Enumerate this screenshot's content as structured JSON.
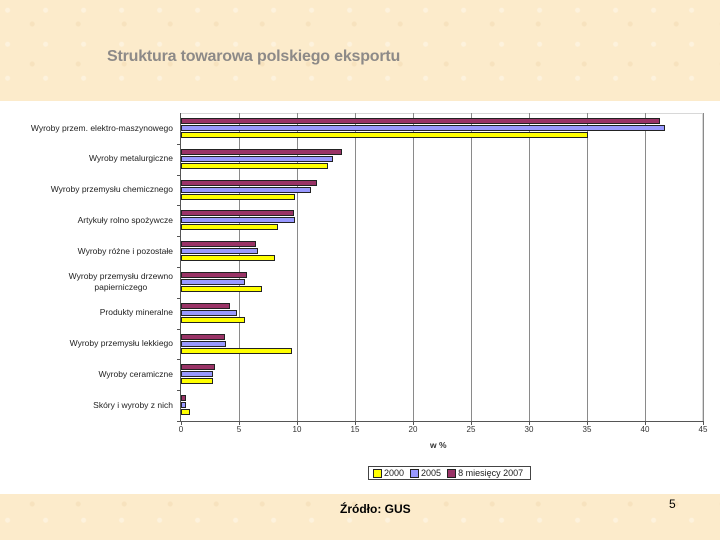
{
  "slide": {
    "title": "Struktura towarowa polskiego eksportu",
    "source": "Źródło: GUS",
    "page_number": "5"
  },
  "chart_data": {
    "type": "bar",
    "orientation": "horizontal",
    "title": "",
    "xlabel": "w %",
    "ylabel": "",
    "xlim": [
      0,
      45
    ],
    "xticks": [
      0,
      5,
      10,
      15,
      20,
      25,
      30,
      35,
      40,
      45
    ],
    "grid": true,
    "legend_position": "bottom",
    "categories": [
      "Wyroby przem. elektro-maszynowego",
      "Wyroby metalurgiczne",
      "Wyroby przemysłu chemicznego",
      "Artykuły rolno spożywcze",
      "Wyroby różne i pozostałe",
      "Wyroby przemysłu drzewno papierniczego",
      "Produkty mineralne",
      "Wyroby przemysłu lekkiego",
      "Wyroby ceramiczne",
      "Skóry i wyroby z nich"
    ],
    "category_lines": [
      [
        "Wyroby przem. elektro-maszynowego"
      ],
      [
        "Wyroby metalurgiczne"
      ],
      [
        "Wyroby przemysłu chemicznego"
      ],
      [
        "Artykuły rolno spożywcze"
      ],
      [
        "Wyroby różne i pozostałe"
      ],
      [
        "Wyroby przemysłu drzewno",
        "papierniczego"
      ],
      [
        "Produkty mineralne"
      ],
      [
        "Wyroby przemysłu lekkiego"
      ],
      [
        "Wyroby ceramiczne"
      ],
      [
        "Skóry i wyroby z nich"
      ]
    ],
    "series": [
      {
        "name": "2000",
        "color": "#ffff00",
        "values": [
          35.1,
          12.7,
          9.8,
          8.4,
          8.1,
          7.0,
          5.5,
          9.6,
          2.8,
          0.8
        ]
      },
      {
        "name": "2005",
        "color": "#9999ff",
        "values": [
          41.7,
          13.1,
          11.2,
          9.8,
          6.6,
          5.5,
          4.8,
          3.9,
          2.8,
          0.4
        ]
      },
      {
        "name": "8 miesięcy 2007",
        "color": "#993366",
        "values": [
          41.3,
          13.9,
          11.7,
          9.7,
          6.5,
          5.7,
          4.2,
          3.8,
          2.9,
          0.4
        ]
      }
    ]
  }
}
